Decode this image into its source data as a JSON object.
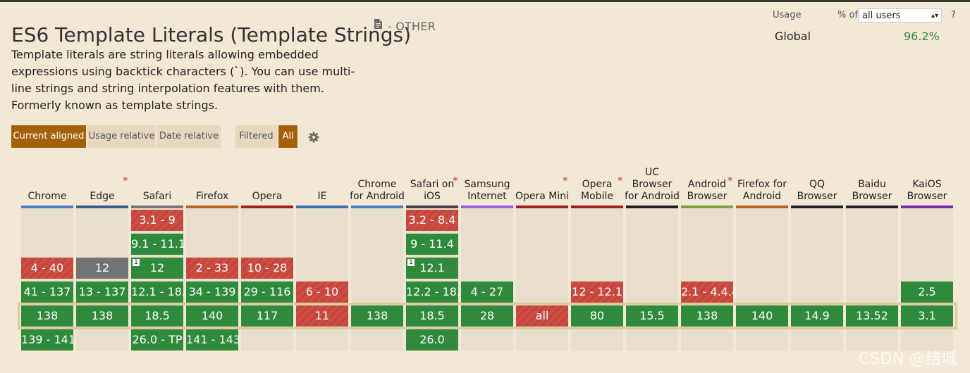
{
  "page": {
    "title": "ES6 Template Literals (Template Strings)",
    "status": "- OTHER",
    "description": "Template literals are string literals allowing embedded expressions using backtick characters (`). You can use multi-line strings and string interpolation features with them. Formerly known as template strings."
  },
  "usage": {
    "label": "Usage",
    "pct_of": "% of",
    "select_value": "all users",
    "help": "?",
    "global_label": "Global",
    "global_value": "96.2%"
  },
  "view_buttons": {
    "current_aligned": "Current aligned",
    "usage_relative": "Usage relative",
    "date_relative": "Date relative",
    "filtered": "Filtered",
    "all": "All"
  },
  "colors": {
    "supported": "#2f8a3b",
    "unsupported": "#c7443a",
    "unknown": "#737373",
    "accent": "#a4610a"
  },
  "browsers": [
    {
      "name": "Chrome",
      "bar": "#4f7fbf",
      "star": false,
      "cells": [
        null,
        null,
        {
          "v": "4 - 40",
          "s": "n"
        },
        {
          "v": "41 - 137",
          "s": "y"
        },
        {
          "v": "138",
          "s": "y"
        },
        {
          "v": "139 - 141",
          "s": "y"
        }
      ]
    },
    {
      "name": "Edge",
      "bar": "#3a5f8f",
      "star": true,
      "cells": [
        null,
        null,
        {
          "v": "12",
          "s": "u"
        },
        {
          "v": "13 - 137",
          "s": "y"
        },
        {
          "v": "138",
          "s": "y"
        },
        null
      ]
    },
    {
      "name": "Safari",
      "bar": "#777777",
      "star": false,
      "cells": [
        {
          "v": "3.1 - 9",
          "s": "n"
        },
        {
          "v": "9.1 - 11.1",
          "s": "y"
        },
        {
          "v": "12",
          "s": "y",
          "note": "1"
        },
        {
          "v": "12.1 - 18.4",
          "s": "y"
        },
        {
          "v": "18.5",
          "s": "y"
        },
        {
          "v": "26.0 - TP",
          "s": "y"
        }
      ]
    },
    {
      "name": "Firefox",
      "bar": "#b5651d",
      "star": false,
      "cells": [
        null,
        null,
        {
          "v": "2 - 33",
          "s": "n"
        },
        {
          "v": "34 - 139",
          "s": "y"
        },
        {
          "v": "140",
          "s": "y"
        },
        {
          "v": "141 - 143",
          "s": "y"
        }
      ]
    },
    {
      "name": "Opera",
      "bar": "#a32020",
      "star": false,
      "cells": [
        null,
        null,
        {
          "v": "10 - 28",
          "s": "n"
        },
        {
          "v": "29 - 116",
          "s": "y"
        },
        {
          "v": "117",
          "s": "y"
        },
        null
      ]
    },
    {
      "name": "IE",
      "bar": "#3d6fb3",
      "star": false,
      "cells": [
        null,
        null,
        null,
        {
          "v": "6 - 10",
          "s": "n"
        },
        {
          "v": "11",
          "s": "n"
        },
        null
      ]
    },
    {
      "name": "Chrome for Android",
      "bar": "#4f7fbf",
      "star": false,
      "cells": [
        null,
        null,
        null,
        null,
        {
          "v": "138",
          "s": "y"
        },
        null
      ]
    },
    {
      "name": "Safari on iOS",
      "bar": "#444444",
      "star": true,
      "cells": [
        {
          "v": "3.2 - 8.4",
          "s": "n"
        },
        {
          "v": "9 - 11.4",
          "s": "y"
        },
        {
          "v": "12.1",
          "s": "y",
          "note": "1"
        },
        {
          "v": "12.2 - 18.4",
          "s": "y"
        },
        {
          "v": "18.5",
          "s": "y"
        },
        {
          "v": "26.0",
          "s": "y"
        }
      ]
    },
    {
      "name": "Samsung Internet",
      "bar": "#9b5de5",
      "star": false,
      "cells": [
        null,
        null,
        null,
        {
          "v": "4 - 27",
          "s": "y"
        },
        {
          "v": "28",
          "s": "y"
        },
        null
      ]
    },
    {
      "name": "Opera Mini",
      "bar": "#a32020",
      "star": true,
      "cells": [
        null,
        null,
        null,
        null,
        {
          "v": "all",
          "s": "n"
        },
        null
      ]
    },
    {
      "name": "Opera Mobile",
      "bar": "#a32020",
      "star": true,
      "cells": [
        null,
        null,
        null,
        {
          "v": "12 - 12.1",
          "s": "n"
        },
        {
          "v": "80",
          "s": "y"
        },
        null
      ]
    },
    {
      "name": "UC Browser for Android",
      "bar": "#222222",
      "star": false,
      "cells": [
        null,
        null,
        null,
        null,
        {
          "v": "15.5",
          "s": "y"
        },
        null
      ]
    },
    {
      "name": "Android Browser",
      "bar": "#7ea13f",
      "star": true,
      "cells": [
        null,
        null,
        null,
        {
          "v": "2.1 - 4.4.4",
          "s": "n"
        },
        {
          "v": "138",
          "s": "y"
        },
        null
      ]
    },
    {
      "name": "Firefox for Android",
      "bar": "#b5651d",
      "star": false,
      "cells": [
        null,
        null,
        null,
        null,
        {
          "v": "140",
          "s": "y"
        },
        null
      ]
    },
    {
      "name": "QQ Browser",
      "bar": "#222222",
      "star": false,
      "cells": [
        null,
        null,
        null,
        null,
        {
          "v": "14.9",
          "s": "y"
        },
        null
      ]
    },
    {
      "name": "Baidu Browser",
      "bar": "#222222",
      "star": false,
      "cells": [
        null,
        null,
        null,
        null,
        {
          "v": "13.52",
          "s": "y"
        },
        null
      ]
    },
    {
      "name": "KaiOS Browser",
      "bar": "#7a2db3",
      "star": false,
      "cells": [
        null,
        null,
        null,
        {
          "v": "2.5",
          "s": "y"
        },
        {
          "v": "3.1",
          "s": "y"
        },
        null
      ]
    }
  ],
  "watermark": "CSDN @结城"
}
